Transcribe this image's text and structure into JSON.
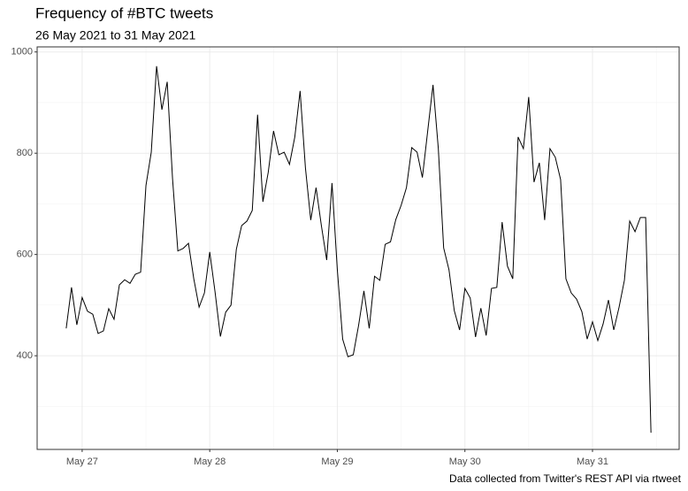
{
  "chart_data": {
    "type": "line",
    "title": "Frequency of #BTC tweets",
    "subtitle": "26 May 2021 to 31 May 2021",
    "caption": "Data collected from Twitter's REST API via rtweet",
    "x": [
      "2021-05-26T21:00",
      "2021-05-26T22:00",
      "2021-05-26T23:00",
      "2021-05-27T00:00",
      "2021-05-27T01:00",
      "2021-05-27T02:00",
      "2021-05-27T03:00",
      "2021-05-27T04:00",
      "2021-05-27T05:00",
      "2021-05-27T06:00",
      "2021-05-27T07:00",
      "2021-05-27T08:00",
      "2021-05-27T09:00",
      "2021-05-27T10:00",
      "2021-05-27T11:00",
      "2021-05-27T12:00",
      "2021-05-27T13:00",
      "2021-05-27T14:00",
      "2021-05-27T15:00",
      "2021-05-27T16:00",
      "2021-05-27T17:00",
      "2021-05-27T18:00",
      "2021-05-27T19:00",
      "2021-05-27T20:00",
      "2021-05-27T21:00",
      "2021-05-27T22:00",
      "2021-05-27T23:00",
      "2021-05-28T00:00",
      "2021-05-28T01:00",
      "2021-05-28T02:00",
      "2021-05-28T03:00",
      "2021-05-28T04:00",
      "2021-05-28T05:00",
      "2021-05-28T06:00",
      "2021-05-28T07:00",
      "2021-05-28T08:00",
      "2021-05-28T09:00",
      "2021-05-28T10:00",
      "2021-05-28T11:00",
      "2021-05-28T12:00",
      "2021-05-28T13:00",
      "2021-05-28T14:00",
      "2021-05-28T15:00",
      "2021-05-28T16:00",
      "2021-05-28T17:00",
      "2021-05-28T18:00",
      "2021-05-28T19:00",
      "2021-05-28T20:00",
      "2021-05-28T21:00",
      "2021-05-28T22:00",
      "2021-05-28T23:00",
      "2021-05-29T00:00",
      "2021-05-29T01:00",
      "2021-05-29T02:00",
      "2021-05-29T03:00",
      "2021-05-29T04:00",
      "2021-05-29T05:00",
      "2021-05-29T06:00",
      "2021-05-29T07:00",
      "2021-05-29T08:00",
      "2021-05-29T09:00",
      "2021-05-29T10:00",
      "2021-05-29T11:00",
      "2021-05-29T12:00",
      "2021-05-29T13:00",
      "2021-05-29T14:00",
      "2021-05-29T15:00",
      "2021-05-29T16:00",
      "2021-05-29T17:00",
      "2021-05-29T18:00",
      "2021-05-29T19:00",
      "2021-05-29T20:00",
      "2021-05-29T21:00",
      "2021-05-29T22:00",
      "2021-05-29T23:00",
      "2021-05-30T00:00",
      "2021-05-30T01:00",
      "2021-05-30T02:00",
      "2021-05-30T03:00",
      "2021-05-30T04:00",
      "2021-05-30T05:00",
      "2021-05-30T06:00",
      "2021-05-30T07:00",
      "2021-05-30T08:00",
      "2021-05-30T09:00",
      "2021-05-30T10:00",
      "2021-05-30T11:00",
      "2021-05-30T12:00",
      "2021-05-30T13:00",
      "2021-05-30T14:00",
      "2021-05-30T15:00",
      "2021-05-30T16:00",
      "2021-05-30T17:00",
      "2021-05-30T18:00",
      "2021-05-30T19:00",
      "2021-05-30T20:00",
      "2021-05-30T21:00",
      "2021-05-30T22:00",
      "2021-05-30T23:00",
      "2021-05-31T00:00",
      "2021-05-31T01:00",
      "2021-05-31T02:00",
      "2021-05-31T03:00",
      "2021-05-31T04:00",
      "2021-05-31T05:00",
      "2021-05-31T06:00",
      "2021-05-31T07:00",
      "2021-05-31T08:00",
      "2021-05-31T09:00",
      "2021-05-31T10:00",
      "2021-05-31T11:00"
    ],
    "values": [
      454,
      535,
      461,
      515,
      488,
      482,
      444,
      449,
      493,
      472,
      540,
      550,
      543,
      561,
      565,
      736,
      802,
      972,
      886,
      941,
      750,
      607,
      612,
      622,
      552,
      496,
      524,
      605,
      526,
      438,
      486,
      500,
      610,
      657,
      666,
      687,
      876,
      704,
      762,
      844,
      797,
      802,
      778,
      832,
      923,
      771,
      668,
      732,
      657,
      589,
      741,
      570,
      433,
      398,
      402,
      460,
      528,
      454,
      557,
      549,
      620,
      625,
      669,
      697,
      732,
      811,
      802,
      752,
      844,
      935,
      809,
      613,
      570,
      489,
      451,
      533,
      514,
      437,
      494,
      440,
      533,
      535,
      664,
      577,
      552,
      832,
      809,
      911,
      743,
      781,
      668,
      809,
      792,
      748,
      552,
      524,
      512,
      487,
      433,
      467,
      430,
      463,
      510,
      451,
      496,
      549,
      666,
      645,
      673,
      673,
      248
    ],
    "color": "#000000",
    "xlim": [
      "2021-05-26T15:32",
      "2021-05-31T16:18"
    ],
    "xticks": [
      {
        "value": "2021-05-27T00:00",
        "label": "May 27"
      },
      {
        "value": "2021-05-28T00:00",
        "label": "May 28"
      },
      {
        "value": "2021-05-29T00:00",
        "label": "May 29"
      },
      {
        "value": "2021-05-30T00:00",
        "label": "May 30"
      },
      {
        "value": "2021-05-31T00:00",
        "label": "May 31"
      }
    ],
    "ylim": [
      215,
      1010
    ],
    "yticks": [
      400,
      600,
      800,
      1000
    ],
    "grid": true
  }
}
